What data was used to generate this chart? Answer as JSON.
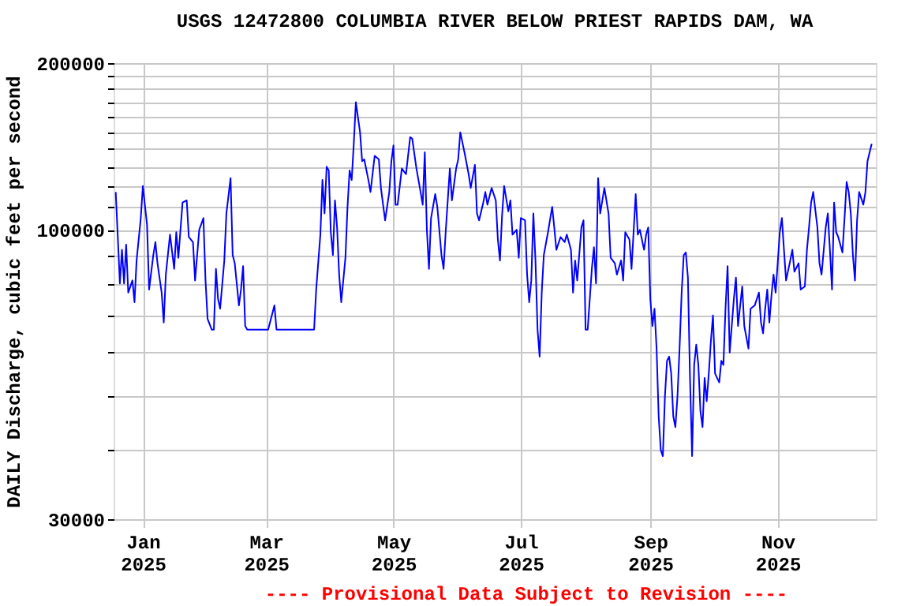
{
  "chart_data": {
    "type": "line",
    "title": "USGS 12472800 COLUMBIA RIVER BELOW PRIEST RAPIDS DAM, WA",
    "ylabel": "DAILY Discharge, cubic feet per second",
    "annotations": [
      "---- Provisional Data Subject to Revision ----"
    ],
    "log": "y",
    "grid": true,
    "legend": false,
    "xlim": [
      "2024-12-18",
      "2025-12-18"
    ],
    "xticks": [
      {
        "value": "2025-01-01",
        "label": "Jan\n2025"
      },
      {
        "value": "2025-03-01",
        "label": "Mar\n2025"
      },
      {
        "value": "2025-05-01",
        "label": "May\n2025"
      },
      {
        "value": "2025-07-01",
        "label": "Jul\n2025"
      },
      {
        "value": "2025-09-01",
        "label": "Sep\n2025"
      },
      {
        "value": "2025-11-01",
        "label": "Nov\n2025"
      }
    ],
    "ylim": [
      30000,
      200000
    ],
    "yticks": [
      30000,
      {
        "value": 40000,
        "label": null
      },
      {
        "value": 50000,
        "label": null
      },
      {
        "value": 60000,
        "label": null
      },
      {
        "value": 70000,
        "label": null
      },
      {
        "value": 80000,
        "label": null
      },
      {
        "value": 90000,
        "label": null
      },
      100000,
      {
        "value": 110000,
        "label": null
      },
      {
        "value": 120000,
        "label": null
      },
      {
        "value": 130000,
        "label": null
      },
      {
        "value": 140000,
        "label": null
      },
      {
        "value": 150000,
        "label": null
      },
      {
        "value": 160000,
        "label": null
      },
      {
        "value": 170000,
        "label": null
      },
      {
        "value": 180000,
        "label": null
      },
      {
        "value": 190000,
        "label": null
      },
      200000
    ],
    "x": [
      "2024-12-19",
      "2024-12-20",
      "2024-12-21",
      "2024-12-22",
      "2024-12-23",
      "2024-12-24",
      "2024-12-25",
      "2024-12-27",
      "2024-12-28",
      "2024-12-29",
      "2024-12-31",
      "2025-01-01",
      "2025-01-03",
      "2025-01-04",
      "2025-01-06",
      "2025-01-07",
      "2025-01-08",
      "2025-01-10",
      "2025-01-11",
      "2025-01-12",
      "2025-01-14",
      "2025-01-16",
      "2025-01-17",
      "2025-01-18",
      "2025-01-20",
      "2025-01-22",
      "2025-01-23",
      "2025-01-25",
      "2025-01-26",
      "2025-01-28",
      "2025-01-30",
      "2025-01-31",
      "2025-02-01",
      "2025-02-03",
      "2025-02-04",
      "2025-02-05",
      "2025-02-06",
      "2025-02-07",
      "2025-02-09",
      "2025-02-10",
      "2025-02-12",
      "2025-02-13",
      "2025-02-14",
      "2025-02-16",
      "2025-02-17",
      "2025-02-18",
      "2025-02-19",
      "2025-02-20",
      "2025-03-02",
      "2025-03-05",
      "2025-03-06",
      "2025-03-15",
      "2025-03-24",
      "2025-03-25",
      "2025-03-27",
      "2025-03-28",
      "2025-03-29",
      "2025-03-30",
      "2025-03-31",
      "2025-04-01",
      "2025-04-02",
      "2025-04-03",
      "2025-04-04",
      "2025-04-05",
      "2025-04-06",
      "2025-04-08",
      "2025-04-09",
      "2025-04-10",
      "2025-04-11",
      "2025-04-12",
      "2025-04-13",
      "2025-04-15",
      "2025-04-16",
      "2025-04-17",
      "2025-04-19",
      "2025-04-20",
      "2025-04-22",
      "2025-04-24",
      "2025-04-25",
      "2025-04-27",
      "2025-04-29",
      "2025-04-30",
      "2025-05-01",
      "2025-05-02",
      "2025-05-03",
      "2025-05-05",
      "2025-05-07",
      "2025-05-09",
      "2025-05-10",
      "2025-05-12",
      "2025-05-14",
      "2025-05-15",
      "2025-05-16",
      "2025-05-17",
      "2025-05-18",
      "2025-05-19",
      "2025-05-21",
      "2025-05-22",
      "2025-05-24",
      "2025-05-25",
      "2025-05-26",
      "2025-05-28",
      "2025-05-29",
      "2025-05-31",
      "2025-06-01",
      "2025-06-02",
      "2025-06-04",
      "2025-06-06",
      "2025-06-07",
      "2025-06-09",
      "2025-06-10",
      "2025-06-11",
      "2025-06-13",
      "2025-06-14",
      "2025-06-15",
      "2025-06-17",
      "2025-06-19",
      "2025-06-20",
      "2025-06-21",
      "2025-06-22",
      "2025-06-23",
      "2025-06-25",
      "2025-06-26",
      "2025-06-27",
      "2025-06-29",
      "2025-06-30",
      "2025-07-01",
      "2025-07-03",
      "2025-07-04",
      "2025-07-05",
      "2025-07-06",
      "2025-07-07",
      "2025-07-08",
      "2025-07-09",
      "2025-07-10",
      "2025-07-11",
      "2025-07-12",
      "2025-07-14",
      "2025-07-16",
      "2025-07-17",
      "2025-07-18",
      "2025-07-20",
      "2025-07-22",
      "2025-07-23",
      "2025-07-25",
      "2025-07-26",
      "2025-07-27",
      "2025-07-28",
      "2025-07-30",
      "2025-07-31",
      "2025-08-01",
      "2025-08-02",
      "2025-08-04",
      "2025-08-05",
      "2025-08-06",
      "2025-08-07",
      "2025-08-08",
      "2025-08-10",
      "2025-08-12",
      "2025-08-13",
      "2025-08-15",
      "2025-08-16",
      "2025-08-18",
      "2025-08-19",
      "2025-08-20",
      "2025-08-22",
      "2025-08-23",
      "2025-08-25",
      "2025-08-26",
      "2025-08-27",
      "2025-08-29",
      "2025-08-30",
      "2025-08-31",
      "2025-09-01",
      "2025-09-02",
      "2025-09-03",
      "2025-09-04",
      "2025-09-05",
      "2025-09-06",
      "2025-09-07",
      "2025-09-08",
      "2025-09-09",
      "2025-09-10",
      "2025-09-11",
      "2025-09-12",
      "2025-09-13",
      "2025-09-14",
      "2025-09-15",
      "2025-09-16",
      "2025-09-17",
      "2025-09-18",
      "2025-09-19",
      "2025-09-20",
      "2025-09-21",
      "2025-09-22",
      "2025-09-23",
      "2025-09-24",
      "2025-09-25",
      "2025-09-26",
      "2025-09-27",
      "2025-09-28",
      "2025-09-29",
      "2025-09-30",
      "2025-10-01",
      "2025-10-02",
      "2025-10-04",
      "2025-10-05",
      "2025-10-06",
      "2025-10-07",
      "2025-10-08",
      "2025-10-09",
      "2025-10-11",
      "2025-10-12",
      "2025-10-13",
      "2025-10-15",
      "2025-10-16",
      "2025-10-18",
      "2025-10-19",
      "2025-10-21",
      "2025-10-23",
      "2025-10-24",
      "2025-10-25",
      "2025-10-26",
      "2025-10-27",
      "2025-10-28",
      "2025-10-29",
      "2025-10-30",
      "2025-10-31",
      "2025-11-01",
      "2025-11-02",
      "2025-11-03",
      "2025-11-04",
      "2025-11-05",
      "2025-11-07",
      "2025-11-08",
      "2025-11-09",
      "2025-11-11",
      "2025-11-12",
      "2025-11-14",
      "2025-11-15",
      "2025-11-16",
      "2025-11-17",
      "2025-11-18",
      "2025-11-20",
      "2025-11-21",
      "2025-11-22",
      "2025-11-24",
      "2025-11-25",
      "2025-11-26",
      "2025-11-27",
      "2025-11-28",
      "2025-11-29",
      "2025-11-30",
      "2025-12-02",
      "2025-12-03",
      "2025-12-04",
      "2025-12-05",
      "2025-12-06",
      "2025-12-07",
      "2025-12-08",
      "2025-12-09",
      "2025-12-10",
      "2025-12-12",
      "2025-12-13",
      "2025-12-14",
      "2025-12-16"
    ],
    "series": [
      {
        "color": "#0000ff",
        "values": [
          117000,
          97000,
          80000,
          92000,
          80000,
          94000,
          77000,
          81000,
          74000,
          88000,
          105000,
          120000,
          102000,
          78000,
          90000,
          95000,
          87000,
          77000,
          68000,
          83000,
          98000,
          85000,
          99000,
          89000,
          112000,
          113000,
          97000,
          95000,
          81000,
          100000,
          105000,
          81000,
          69000,
          66000,
          66000,
          85000,
          75000,
          72000,
          88000,
          107000,
          124000,
          90000,
          87000,
          73000,
          78000,
          86000,
          67000,
          66000,
          66000,
          73000,
          66000,
          66000,
          66000,
          78000,
          98000,
          123000,
          107000,
          130000,
          128000,
          99000,
          90000,
          113000,
          101000,
          83000,
          74000,
          89000,
          110000,
          128000,
          123000,
          143000,
          170000,
          150000,
          133000,
          134000,
          123000,
          117000,
          136000,
          134000,
          119000,
          104000,
          117000,
          133000,
          142000,
          111000,
          111000,
          129000,
          126000,
          147000,
          146000,
          129000,
          117000,
          111000,
          138000,
          100000,
          85000,
          105000,
          116000,
          110000,
          90000,
          85000,
          99000,
          129000,
          113000,
          129000,
          134000,
          150000,
          138000,
          126000,
          119000,
          131000,
          107000,
          104000,
          112000,
          117000,
          111000,
          119000,
          113000,
          96000,
          88000,
          106000,
          120000,
          108000,
          113000,
          98000,
          100000,
          89000,
          105000,
          104000,
          83000,
          74000,
          81000,
          107000,
          88000,
          66000,
          59000,
          77000,
          90000,
          99000,
          110000,
          101000,
          92000,
          97000,
          95000,
          98000,
          92000,
          77000,
          88000,
          81000,
          101000,
          104000,
          66000,
          66000,
          85000,
          93000,
          80000,
          124000,
          107000,
          119000,
          107000,
          89000,
          87000,
          83000,
          88000,
          81000,
          99000,
          96000,
          85000,
          116000,
          98000,
          100000,
          92000,
          98000,
          101000,
          75000,
          67000,
          72000,
          61000,
          46000,
          40000,
          39000,
          50000,
          58000,
          59000,
          55000,
          46000,
          44000,
          50000,
          61000,
          77000,
          90000,
          91000,
          82000,
          54000,
          39000,
          57000,
          62000,
          57000,
          47000,
          44000,
          54000,
          49000,
          55000,
          63000,
          70000,
          55000,
          53000,
          58000,
          57000,
          72000,
          86000,
          60000,
          75000,
          82000,
          67000,
          79000,
          67000,
          61000,
          72000,
          73000,
          77000,
          68000,
          65000,
          72000,
          78000,
          68000,
          76000,
          83000,
          77000,
          87000,
          99000,
          105000,
          92000,
          81000,
          88000,
          92000,
          84000,
          87000,
          78000,
          79000,
          92000,
          101000,
          112000,
          117000,
          101000,
          87000,
          83000,
          101000,
          107000,
          92000,
          78000,
          112000,
          99000,
          97000,
          91000,
          105000,
          122000,
          117000,
          107000,
          90000,
          81000,
          104000,
          117000,
          111000,
          117000,
          133000,
          143000
        ]
      }
    ]
  }
}
